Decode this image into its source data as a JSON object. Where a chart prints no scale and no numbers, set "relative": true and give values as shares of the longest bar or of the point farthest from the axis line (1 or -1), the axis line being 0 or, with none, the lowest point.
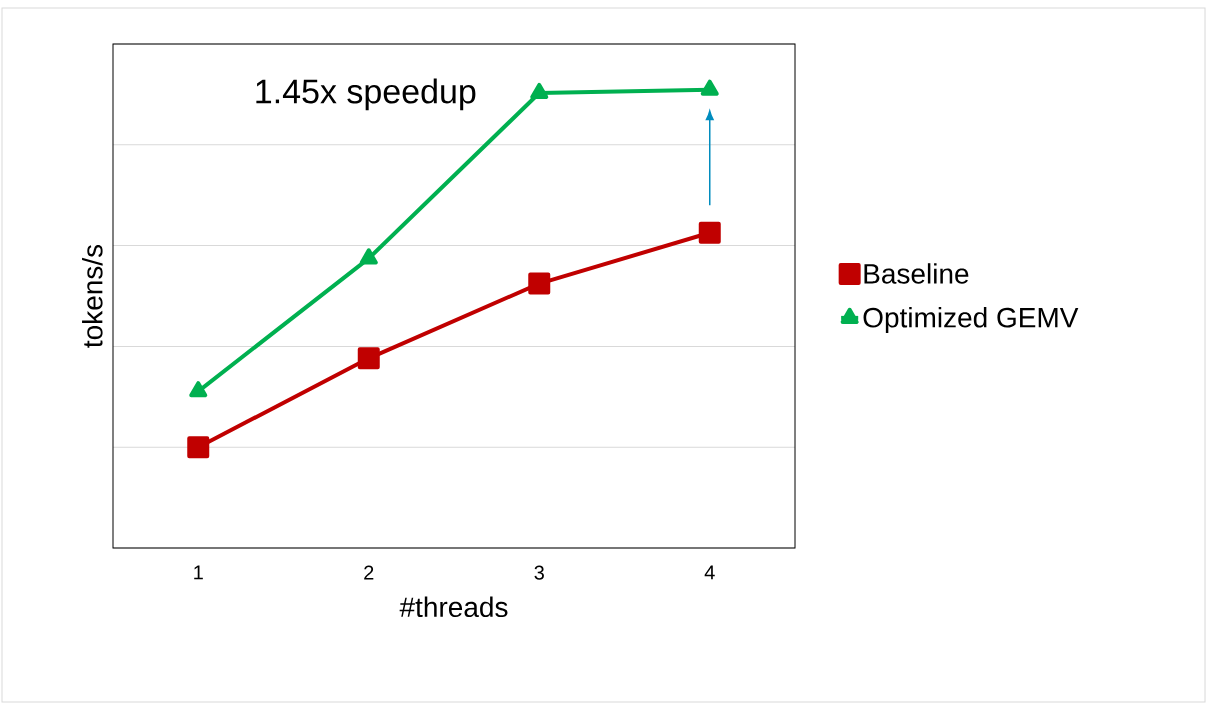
{
  "chart_data": {
    "type": "line",
    "xlabel": "#threads",
    "ylabel": "tokens/s",
    "categories": [
      "1",
      "2",
      "3",
      "4"
    ],
    "relative": true,
    "grid": "y",
    "legend": "right",
    "annotations": [
      "1.45x speedup"
    ],
    "series": [
      {
        "name": "Baseline",
        "color": "#c00000",
        "marker": "square",
        "values": [
          0.22,
          0.414,
          0.577,
          0.688
        ]
      },
      {
        "name": "Optimized GEMV",
        "color": "#00b050",
        "marker": "triangle",
        "values": [
          0.342,
          0.632,
          0.993,
          1.0
        ]
      }
    ]
  }
}
